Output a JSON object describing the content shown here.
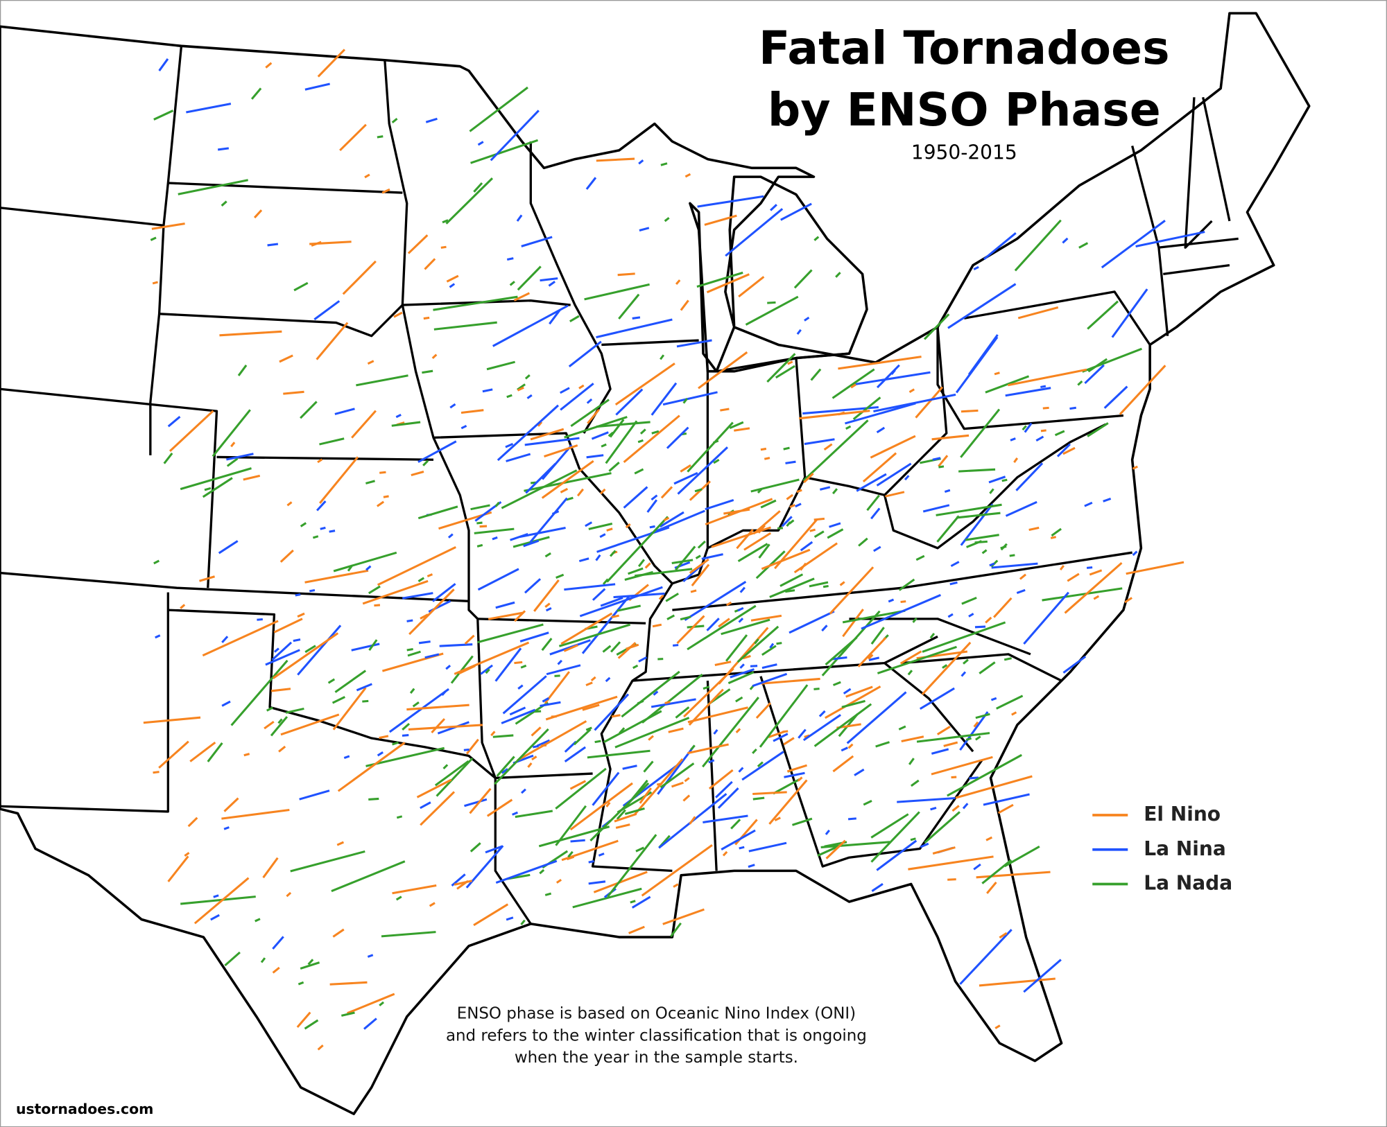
{
  "header": {
    "title_lines": [
      "Fatal Tornadoes",
      "by ENSO Phase"
    ],
    "subtitle": "1950-2015"
  },
  "legend": {
    "items": [
      {
        "label": "El Nino",
        "color": "#f7841f"
      },
      {
        "label": "La Nina",
        "color": "#1f52ff"
      },
      {
        "label": "La Nada",
        "color": "#36a02c"
      }
    ]
  },
  "note": {
    "lines": [
      "ENSO phase is based on Oceanic Nino Index (ONI)",
      "and refers to the winter classification that is ongoing",
      "when the year in the sample starts."
    ]
  },
  "credit": "ustornadoes.com"
}
